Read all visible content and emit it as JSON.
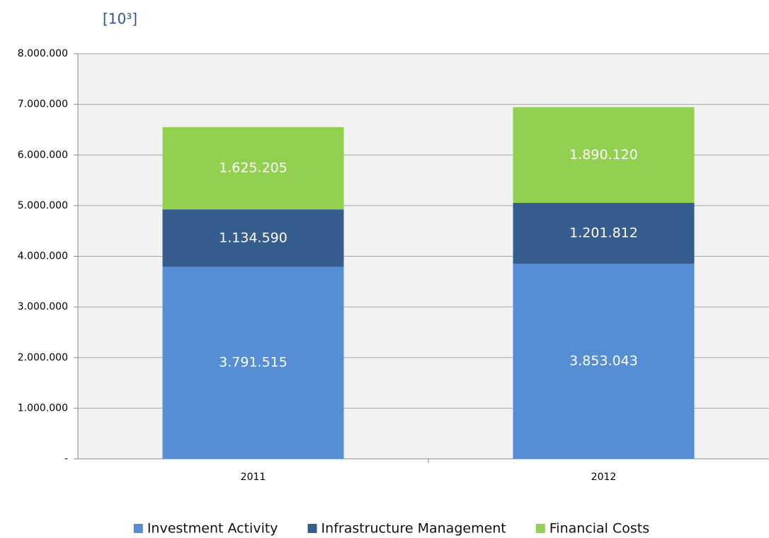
{
  "chart_data": {
    "type": "stacked_bar",
    "unit_label": "[10³]",
    "categories": [
      "2011",
      "2012"
    ],
    "series": [
      {
        "name": "Investment Activity",
        "color": "#558ed5",
        "values": [
          3791515,
          3853043
        ],
        "value_labels": [
          "3.791.515",
          "3.853.043"
        ]
      },
      {
        "name": "Infrastructure Management",
        "color": "#355e8f",
        "values": [
          1134590,
          1201812
        ],
        "value_labels": [
          "1.134.590",
          "1.201.812"
        ]
      },
      {
        "name": "Financial Costs",
        "color": "#92d050",
        "values": [
          1625205,
          1890120
        ],
        "value_labels": [
          "1.625.205",
          "1.890.120"
        ]
      }
    ],
    "ylim": [
      0,
      8000000
    ],
    "yticks": [
      {
        "value": 0,
        "label": "-"
      },
      {
        "value": 1000000,
        "label": "1.000.000"
      },
      {
        "value": 2000000,
        "label": "2.000.000"
      },
      {
        "value": 3000000,
        "label": "3.000.000"
      },
      {
        "value": 4000000,
        "label": "4.000.000"
      },
      {
        "value": 5000000,
        "label": "5.000.000"
      },
      {
        "value": 6000000,
        "label": "6.000.000"
      },
      {
        "value": 7000000,
        "label": "7.000.000"
      },
      {
        "value": 8000000,
        "label": "8.000.000"
      }
    ],
    "grid": true,
    "legend": "bottom"
  }
}
